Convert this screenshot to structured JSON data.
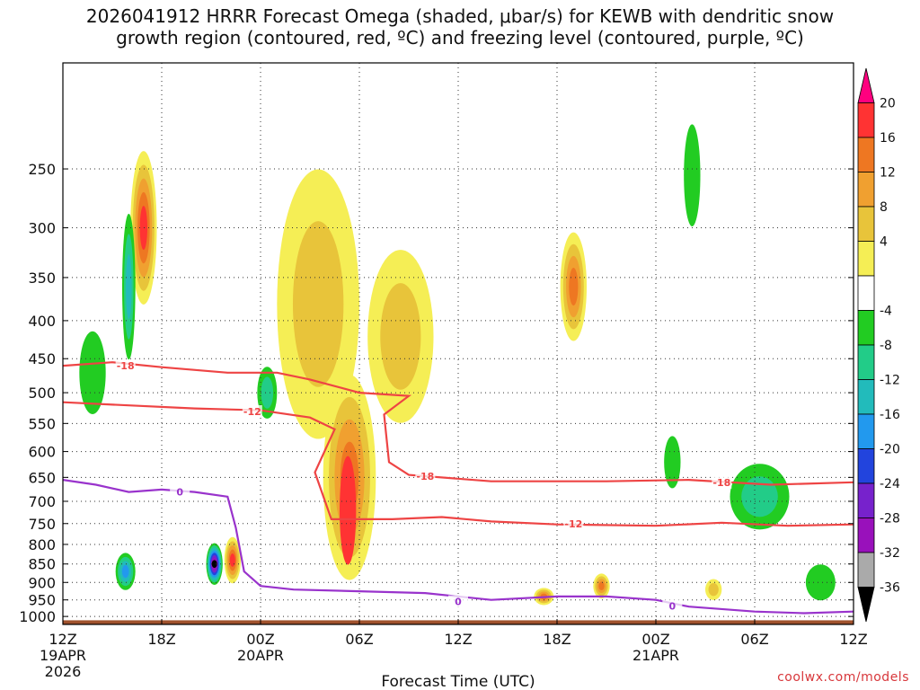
{
  "header": {
    "title_line1": "2026041912 HRRR Forecast Omega (shaded, μbar/s) for KEWB with dendritic snow",
    "title_line2": "growth region (contoured, red, ºC) and freezing level (contoured, purple, ºC)"
  },
  "watermark": "coolwx.com/models",
  "chart_data": {
    "type": "heatmap",
    "title": "2026041912 HRRR Forecast Omega (shaded, μbar/s) for KEWB with dendritic snow growth region (contoured, red, ºC) and freezing level (contoured, purple, ºC)",
    "xlabel": "Forecast Time (UTC)",
    "ylabel": "",
    "x_hours_range": [
      0,
      48
    ],
    "y_pressure_range_hPa": [
      1025,
      180
    ],
    "x_ticks": [
      {
        "hour": 0,
        "label": "12Z",
        "sub1": "19APR",
        "sub2": "2026"
      },
      {
        "hour": 6,
        "label": "18Z",
        "sub1": "",
        "sub2": ""
      },
      {
        "hour": 12,
        "label": "00Z",
        "sub1": "20APR",
        "sub2": ""
      },
      {
        "hour": 18,
        "label": "06Z",
        "sub1": "",
        "sub2": ""
      },
      {
        "hour": 24,
        "label": "12Z",
        "sub1": "",
        "sub2": ""
      },
      {
        "hour": 30,
        "label": "18Z",
        "sub1": "",
        "sub2": ""
      },
      {
        "hour": 36,
        "label": "00Z",
        "sub1": "21APR",
        "sub2": ""
      },
      {
        "hour": 42,
        "label": "06Z",
        "sub1": "",
        "sub2": ""
      },
      {
        "hour": 48,
        "label": "12Z",
        "sub1": "",
        "sub2": ""
      }
    ],
    "y_ticks": [
      250,
      300,
      350,
      400,
      450,
      500,
      550,
      600,
      650,
      700,
      750,
      800,
      850,
      900,
      950,
      1000
    ],
    "grid": true,
    "colorbar": {
      "levels": [
        20,
        16,
        12,
        8,
        4,
        -4,
        -8,
        -12,
        -16,
        -20,
        -24,
        -28,
        -32,
        -36
      ],
      "colors": [
        "#ff007f",
        "#ff3333",
        "#ee7722",
        "#f0a030",
        "#e8c43a",
        "#f5ee55",
        "#ffffff",
        "#22cc22",
        "#22cc88",
        "#22bbbb",
        "#2299ee",
        "#2244dd",
        "#7722cc",
        "#9911bb",
        "#aaaaaa",
        "#000000"
      ]
    },
    "omega_blobs": [
      {
        "name": "upper-warm-1",
        "hour": 4.9,
        "p": 300,
        "dh": 0.8,
        "dp": 70,
        "levels": [
          4,
          8,
          12,
          16,
          20
        ]
      },
      {
        "name": "upper-warm-2",
        "hour": 15.5,
        "p": 380,
        "dh": 2.5,
        "dp": 150,
        "levels": [
          4,
          8
        ]
      },
      {
        "name": "upper-warm-3",
        "hour": 20.5,
        "p": 420,
        "dh": 2.0,
        "dp": 110,
        "levels": [
          4,
          8
        ]
      },
      {
        "name": "column-warm",
        "hour": 17.4,
        "p": 650,
        "dh": 1.6,
        "dp": 200,
        "levels": [
          4,
          8,
          12,
          16
        ]
      },
      {
        "name": "column-core",
        "hour": 17.3,
        "p": 720,
        "dh": 0.5,
        "dp": 120,
        "levels": [
          20
        ]
      },
      {
        "name": "mid-warm-1",
        "hour": 31.0,
        "p": 360,
        "dh": 0.8,
        "dp": 60,
        "levels": [
          4,
          8,
          12,
          16
        ]
      },
      {
        "name": "low-warm-1",
        "hour": 10.3,
        "p": 840,
        "dh": 0.5,
        "dp": 60,
        "levels": [
          4,
          8,
          12,
          16,
          20
        ]
      },
      {
        "name": "low-warm-2",
        "hour": 29.2,
        "p": 940,
        "dh": 0.6,
        "dp": 25,
        "levels": [
          4,
          8,
          12,
          16
        ]
      },
      {
        "name": "low-warm-3",
        "hour": 32.7,
        "p": 910,
        "dh": 0.5,
        "dp": 35,
        "levels": [
          4,
          8,
          12,
          16
        ]
      },
      {
        "name": "low-warm-4",
        "hour": 39.5,
        "p": 920,
        "dh": 0.5,
        "dp": 30,
        "levels": [
          4,
          8
        ]
      },
      {
        "name": "cold-1",
        "hour": 3.8,
        "p": 870,
        "dh": 0.6,
        "dp": 50,
        "levels": [
          -4,
          -8,
          -12,
          -16
        ]
      },
      {
        "name": "cold-2",
        "hour": 9.2,
        "p": 850,
        "dh": 0.5,
        "dp": 55,
        "levels": [
          -4,
          -8,
          -12,
          -16,
          -20,
          -24,
          -28,
          -36
        ]
      },
      {
        "name": "cold-3",
        "hour": 4.0,
        "p": 360,
        "dh": 0.4,
        "dp": 80,
        "levels": [
          -4,
          -8,
          -12
        ]
      },
      {
        "name": "cold-4",
        "hour": 1.8,
        "p": 470,
        "dh": 0.8,
        "dp": 60,
        "levels": [
          -4
        ]
      },
      {
        "name": "cold-5",
        "hour": 12.4,
        "p": 500,
        "dh": 0.6,
        "dp": 40,
        "levels": [
          -4,
          -8
        ]
      },
      {
        "name": "cold-6",
        "hour": 42.3,
        "p": 690,
        "dh": 1.8,
        "dp": 70,
        "levels": [
          -4,
          -8
        ]
      },
      {
        "name": "cold-7",
        "hour": 37.0,
        "p": 620,
        "dh": 0.5,
        "dp": 50,
        "levels": [
          -4
        ]
      },
      {
        "name": "cold-8",
        "hour": 46.0,
        "p": 900,
        "dh": 0.9,
        "dp": 50,
        "levels": [
          -4
        ]
      },
      {
        "name": "cold-9",
        "hour": 38.2,
        "p": 255,
        "dh": 0.5,
        "dp": 40,
        "levels": [
          -4
        ]
      }
    ],
    "contours": [
      {
        "name": "-18",
        "color": "#ee4444",
        "labels": [
          {
            "hour": 3.8,
            "p": 460,
            "text": "-18"
          },
          {
            "hour": 22.0,
            "p": 648,
            "text": "-18"
          },
          {
            "hour": 40.0,
            "p": 660,
            "text": "-18"
          }
        ],
        "points": [
          [
            0,
            460
          ],
          [
            3,
            455
          ],
          [
            6,
            462
          ],
          [
            10,
            470
          ],
          [
            13,
            470
          ],
          [
            15,
            480
          ],
          [
            18,
            500
          ],
          [
            21,
            505
          ],
          [
            19.5,
            535
          ],
          [
            19.8,
            620
          ],
          [
            21,
            645
          ],
          [
            26,
            658
          ],
          [
            33,
            658
          ],
          [
            38,
            655
          ],
          [
            43,
            665
          ],
          [
            48,
            660
          ]
        ]
      },
      {
        "name": "-12",
        "color": "#ee4444",
        "labels": [
          {
            "hour": 11.5,
            "p": 530,
            "text": "-12"
          },
          {
            "hour": 31.0,
            "p": 750,
            "text": "-12"
          }
        ],
        "points": [
          [
            0,
            515
          ],
          [
            4,
            520
          ],
          [
            8,
            525
          ],
          [
            12,
            528
          ],
          [
            15,
            540
          ],
          [
            16.5,
            560
          ],
          [
            15.3,
            640
          ],
          [
            16.3,
            740
          ],
          [
            20,
            740
          ],
          [
            23,
            735
          ],
          [
            26,
            745
          ],
          [
            30,
            752
          ],
          [
            36,
            755
          ],
          [
            40,
            748
          ],
          [
            44,
            755
          ],
          [
            48,
            752
          ]
        ]
      },
      {
        "name": "0",
        "color": "#9933cc",
        "labels": [
          {
            "hour": 7.1,
            "p": 680,
            "text": "0"
          },
          {
            "hour": 24.0,
            "p": 955,
            "text": "0"
          },
          {
            "hour": 37.0,
            "p": 968,
            "text": "0"
          }
        ],
        "points": [
          [
            0,
            655
          ],
          [
            2,
            665
          ],
          [
            4,
            680
          ],
          [
            6,
            675
          ],
          [
            8,
            680
          ],
          [
            10,
            690
          ],
          [
            10.5,
            760
          ],
          [
            11,
            870
          ],
          [
            12,
            910
          ],
          [
            14,
            920
          ],
          [
            18,
            925
          ],
          [
            22,
            930
          ],
          [
            26,
            950
          ],
          [
            30,
            940
          ],
          [
            33,
            940
          ],
          [
            36,
            950
          ],
          [
            38,
            970
          ],
          [
            42,
            985
          ],
          [
            45,
            990
          ],
          [
            48,
            985
          ]
        ]
      }
    ]
  }
}
